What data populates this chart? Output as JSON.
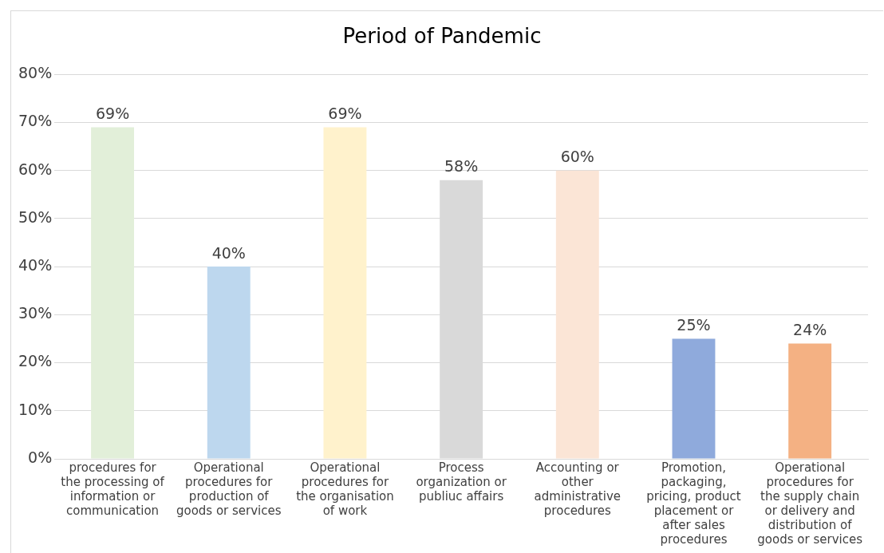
{
  "chart_data": {
    "type": "bar",
    "title": "Period of Pandemic",
    "categories": [
      "procedures for the processing of information or communication",
      "Operational procedures for production of goods or services",
      "Operational procedures for the organisation of work",
      "Process organization or publiuc affairs",
      "Accounting or other administrative procedures",
      "Promotion, packaging, pricing, product placement or after sales procedures",
      "Operational procedures for the supply chain or delivery and distribution of goods or services"
    ],
    "values": [
      69,
      40,
      69,
      58,
      60,
      25,
      24
    ],
    "colors": [
      "#e2efd9",
      "#bdd7ee",
      "#fff2cc",
      "#d9d9d9",
      "#fbe5d6",
      "#8faadc",
      "#f4b183"
    ],
    "value_labels": [
      "69%",
      "40%",
      "69%",
      "58%",
      "60%",
      "25%",
      "24%"
    ],
    "ylim": [
      0,
      80
    ],
    "yticks": [
      {
        "value": 0,
        "label": "0%"
      },
      {
        "value": 10,
        "label": "10%"
      },
      {
        "value": 20,
        "label": "20%"
      },
      {
        "value": 30,
        "label": "30%"
      },
      {
        "value": 40,
        "label": "40%"
      },
      {
        "value": 50,
        "label": "50%"
      },
      {
        "value": 60,
        "label": "60%"
      },
      {
        "value": 70,
        "label": "70%"
      },
      {
        "value": 80,
        "label": "80%"
      }
    ],
    "grid": "y"
  }
}
